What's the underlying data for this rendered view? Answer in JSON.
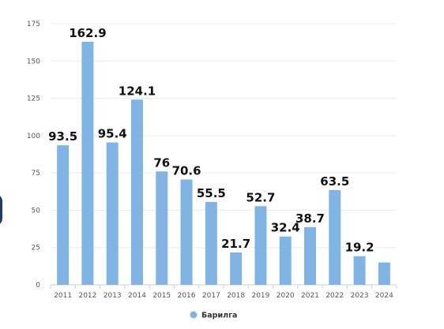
{
  "chart_data": {
    "type": "bar",
    "categories": [
      "2011",
      "2012",
      "2013",
      "2014",
      "2015",
      "2016",
      "2017",
      "2018",
      "2019",
      "2020",
      "2021",
      "2022",
      "2023",
      "2024"
    ],
    "series": [
      {
        "name": "Барилга",
        "values": [
          93.5,
          162.9,
          95.4,
          124.1,
          76,
          70.6,
          55.5,
          21.7,
          52.7,
          32.4,
          38.7,
          63.5,
          19.2,
          15
        ],
        "data_labels": [
          "93.5",
          "162.9",
          "95.4",
          "124.1",
          "76",
          "70.6",
          "55.5",
          "21.7",
          "52.7",
          "32.4",
          "38.7",
          "63.5",
          "19.2",
          ""
        ]
      }
    ],
    "yticks": [
      0,
      25,
      50,
      75,
      100,
      125,
      150,
      175
    ],
    "ylim": [
      0,
      175
    ],
    "grid": true,
    "legend_position": "bottom-center",
    "bar_color": "#80b4e4",
    "title": "",
    "xlabel": "",
    "ylabel": ""
  }
}
